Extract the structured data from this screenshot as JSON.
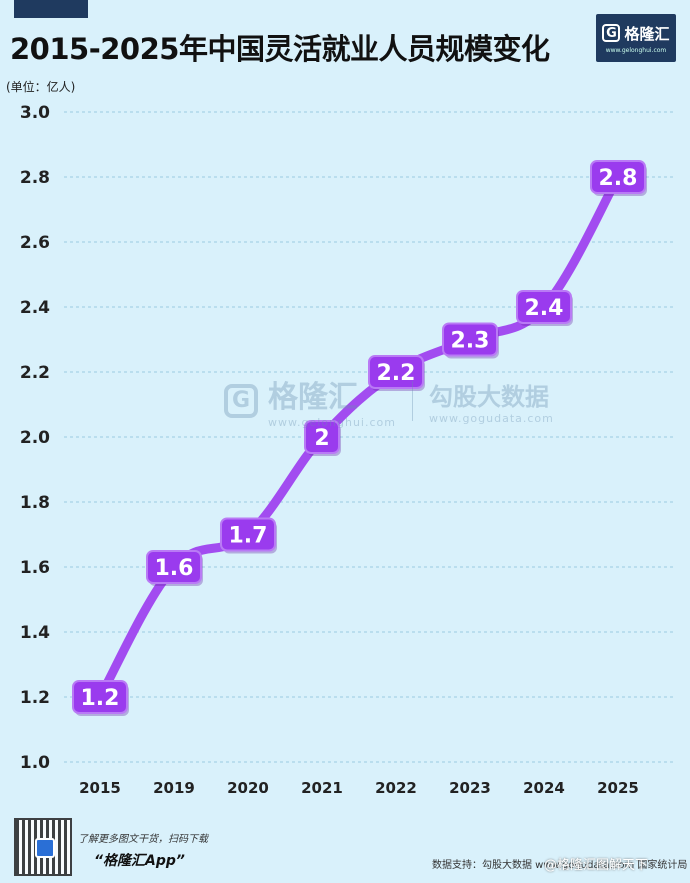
{
  "title": "2015-2025年中国灵活就业人员规模变化",
  "unit_label": "(单位：亿人)",
  "brand": {
    "logo_letter": "G",
    "name": "格隆汇",
    "url": "www.gelonghui.com"
  },
  "watermark": {
    "logo_letter": "G",
    "name": "格隆汇",
    "url_left": "www.gelonghui.com",
    "name_right": "勾股大数据",
    "url_right": "www.gogudata.com"
  },
  "footer": {
    "promo_text": "了解更多图文干货，扫码下载",
    "app_name": "“格隆汇App”",
    "source": "数据支持：勾股大数据 www.gogudata.com  国家统计局",
    "weibo": "@格隆汇图解天下"
  },
  "colors": {
    "line": "#a24cf0",
    "label_bg": "#9a3bee",
    "background": "#d9f1fb",
    "grid": "#9ccbe0"
  },
  "chart_data": {
    "type": "line",
    "title": "2015-2025年中国灵活就业人员规模变化",
    "xlabel": "",
    "ylabel": "(单位：亿人)",
    "categories": [
      "2015",
      "2019",
      "2020",
      "2021",
      "2022",
      "2023",
      "2024",
      "2025"
    ],
    "values": [
      1.2,
      1.6,
      1.7,
      2,
      2.2,
      2.3,
      2.4,
      2.8
    ],
    "value_labels": [
      "1.2",
      "1.6",
      "1.7",
      "2",
      "2.2",
      "2.3",
      "2.4",
      "2.8"
    ],
    "yticks": [
      "1.0",
      "1.2",
      "1.4",
      "1.6",
      "1.8",
      "2.0",
      "2.2",
      "2.4",
      "2.6",
      "2.8",
      "3.0"
    ],
    "ylim": [
      1.0,
      3.0
    ],
    "grid": true,
    "legend": "none"
  }
}
